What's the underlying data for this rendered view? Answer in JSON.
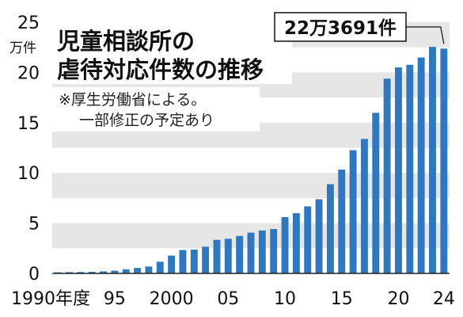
{
  "chart_data": {
    "type": "bar",
    "title_lines": [
      "児童相談所の",
      "虐待対応件数の推移"
    ],
    "notes": [
      "※厚生労働省による。",
      "一部修正の予定あり"
    ],
    "y_unit": "万件",
    "ylim": [
      0,
      25
    ],
    "y_ticks": [
      {
        "value": 0,
        "label": "0"
      },
      {
        "value": 5,
        "label": "5"
      },
      {
        "value": 10,
        "label": "10"
      },
      {
        "value": 15,
        "label": "15"
      },
      {
        "value": 20,
        "label": "20"
      },
      {
        "value": 25,
        "label": "25"
      }
    ],
    "x_ticks": [
      {
        "year": 1990,
        "label": "1990年度"
      },
      {
        "year": 1995,
        "label": "95"
      },
      {
        "year": 2000,
        "label": "2000"
      },
      {
        "year": 2005,
        "label": "05"
      },
      {
        "year": 2010,
        "label": "10"
      },
      {
        "year": 2015,
        "label": "15"
      },
      {
        "year": 2020,
        "label": "20"
      },
      {
        "year": 2024,
        "label": "24"
      }
    ],
    "years": [
      1990,
      1991,
      1992,
      1993,
      1994,
      1995,
      1996,
      1997,
      1998,
      1999,
      2000,
      2001,
      2002,
      2003,
      2004,
      2005,
      2006,
      2007,
      2008,
      2009,
      2010,
      2011,
      2012,
      2013,
      2014,
      2015,
      2016,
      2017,
      2018,
      2019,
      2020,
      2021,
      2022,
      2023,
      2024
    ],
    "values": [
      0.11,
      0.13,
      0.14,
      0.16,
      0.2,
      0.27,
      0.41,
      0.54,
      0.69,
      1.16,
      1.77,
      2.33,
      2.37,
      2.66,
      3.34,
      3.45,
      3.73,
      4.06,
      4.27,
      4.42,
      5.6,
      5.99,
      6.67,
      7.38,
      8.88,
      10.33,
      12.26,
      13.38,
      15.98,
      19.38,
      20.5,
      20.76,
      21.49,
      22.54,
      22.37
    ],
    "callout": {
      "label": "22万3691件",
      "year": 2024
    },
    "bar_color": "#2f78bd",
    "band_color": "#e6e6e6",
    "grid": "alternating-bands"
  }
}
